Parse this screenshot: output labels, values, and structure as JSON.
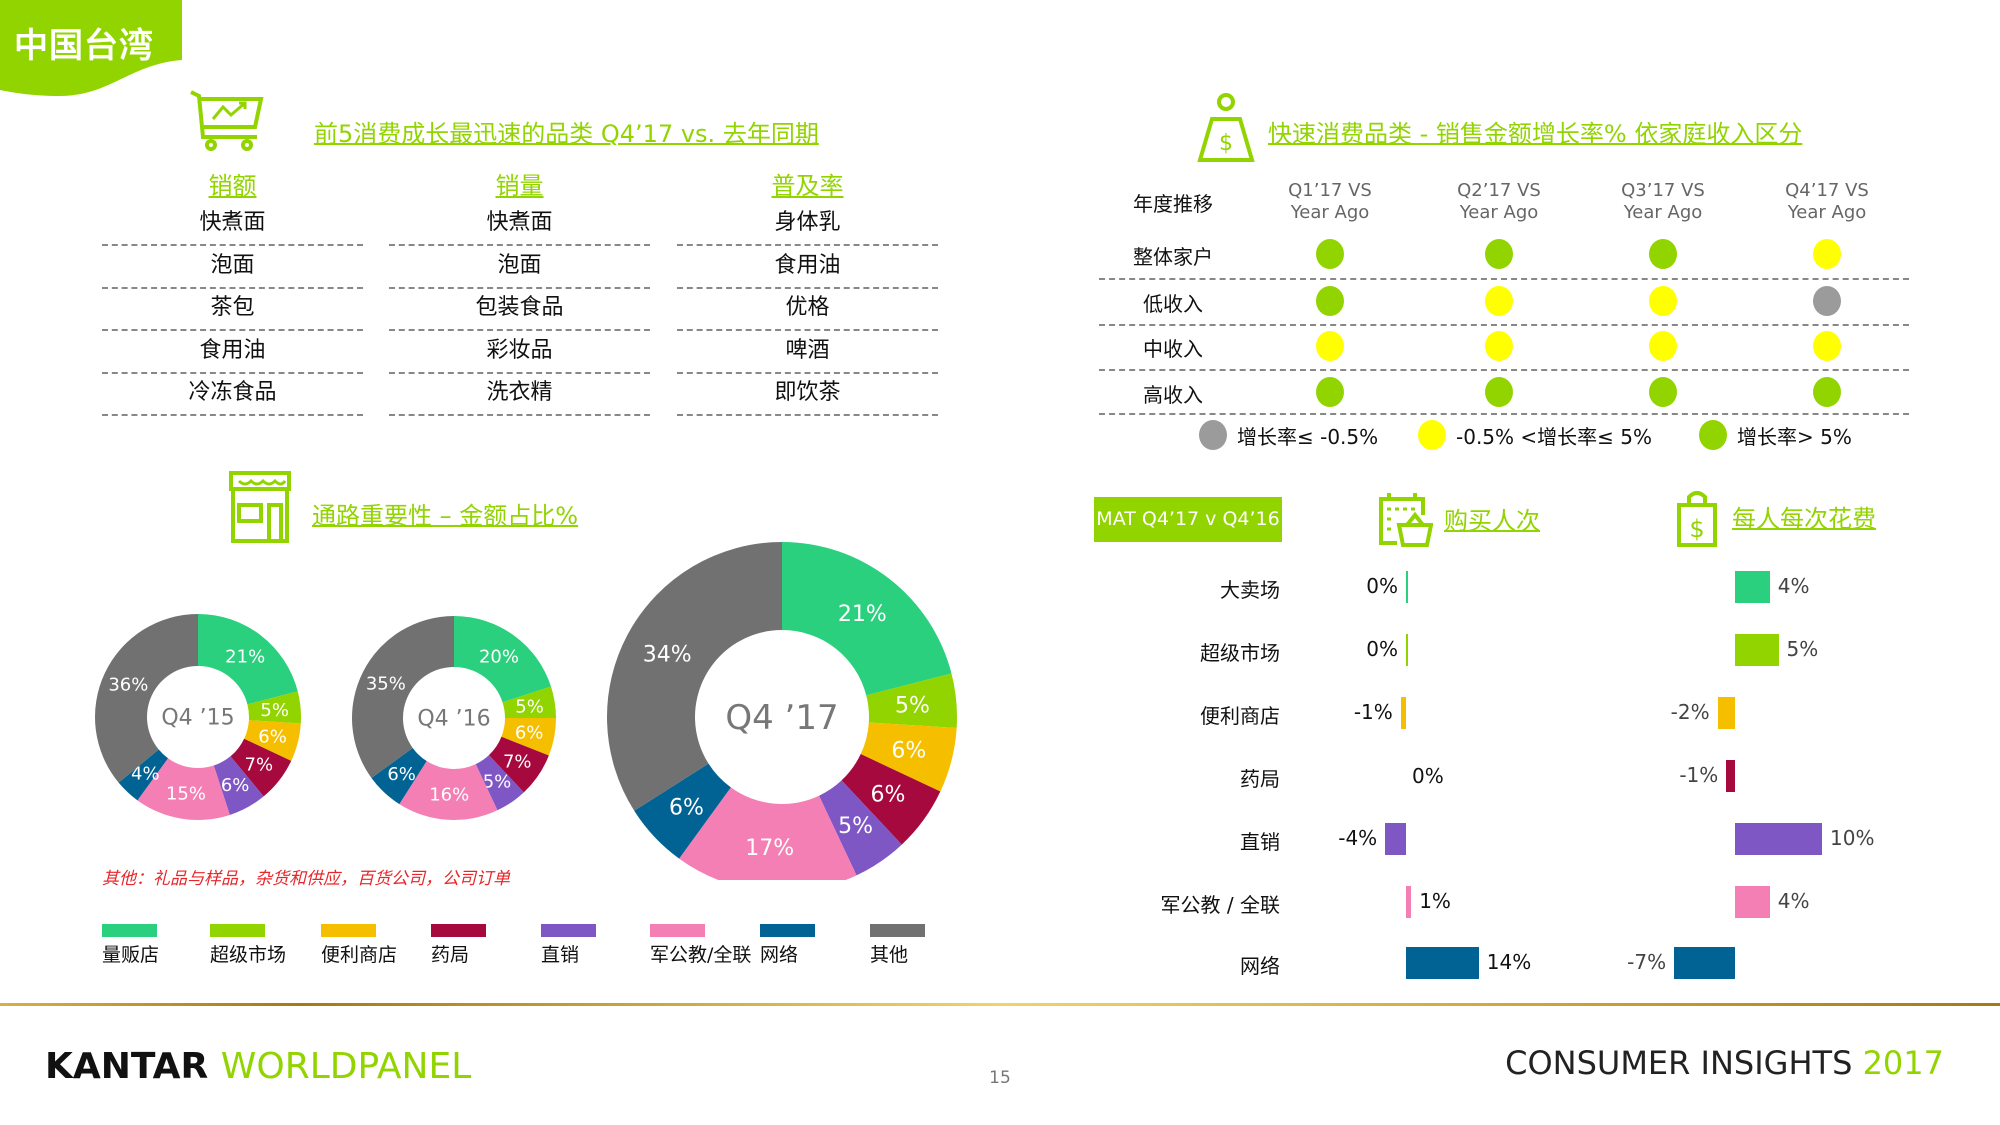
{
  "badge": {
    "label": "中国台湾",
    "color": "#92d400"
  },
  "top_categories": {
    "title": "前5消费成长最迅速的品类 Q4’17  vs.  去年同期",
    "columns": [
      {
        "header": "销额",
        "items": [
          "快煮面",
          "泡面",
          "茶包",
          "食用油",
          "冷冻食品"
        ]
      },
      {
        "header": "销量",
        "items": [
          "快煮面",
          "泡面",
          "包装食品",
          "彩妆品",
          "洗衣精"
        ]
      },
      {
        "header": "普及率",
        "items": [
          "身体乳",
          "食用油",
          "优格",
          "啤酒",
          "即饮茶"
        ]
      }
    ]
  },
  "income_growth": {
    "title": "快速消费品类 - 销售金额增长率% 依家庭收入区分",
    "corner_label": "年度推移",
    "periods": [
      {
        "line1": "Q1’17 VS",
        "line2": "Year Ago"
      },
      {
        "line1": "Q2’17 VS",
        "line2": "Year Ago"
      },
      {
        "line1": "Q3’17 VS",
        "line2": "Year Ago"
      },
      {
        "line1": "Q4’17 VS",
        "line2": "Year Ago"
      }
    ],
    "rows": [
      {
        "label": "整体家户",
        "status": [
          "high",
          "high",
          "high",
          "mid"
        ]
      },
      {
        "label": "低收入",
        "status": [
          "high",
          "mid",
          "mid",
          "low"
        ]
      },
      {
        "label": "中收入",
        "status": [
          "mid",
          "mid",
          "mid",
          "mid"
        ]
      },
      {
        "label": "高收入",
        "status": [
          "high",
          "high",
          "high",
          "high"
        ]
      }
    ],
    "status_colors": {
      "low": "#9b9b9b",
      "mid": "#ffff00",
      "high": "#92d400"
    },
    "legend": [
      {
        "status": "low",
        "label": "增长率≤ -0.5%"
      },
      {
        "status": "mid",
        "label": "-0.5% <增长率≤  5%"
      },
      {
        "status": "high",
        "label": "增长率> 5%"
      }
    ]
  },
  "channel_share": {
    "title": "通路重要性 – 金额占比%",
    "note": "其他：礼品与样品，杂货和供应，百货公司，公司订单",
    "channels": [
      {
        "name": "量贩店",
        "color": "#2ad07d"
      },
      {
        "name": "超级市场",
        "color": "#92d400"
      },
      {
        "name": "便利商店",
        "color": "#f5bf00"
      },
      {
        "name": "药局",
        "color": "#a5093d"
      },
      {
        "name": "直销",
        "color": "#7e57c5"
      },
      {
        "name": "军公教/全联",
        "color": "#f47fb4"
      },
      {
        "name": "网络",
        "color": "#006394"
      },
      {
        "name": "其他",
        "color": "#717171"
      }
    ]
  },
  "chart_data": [
    {
      "type": "pie",
      "title": "Q4 ’15",
      "categories": [
        "量贩店",
        "超级市场",
        "便利商店",
        "药局",
        "直销",
        "军公教/全联",
        "网络",
        "其他"
      ],
      "values": [
        21,
        5,
        6,
        7,
        6,
        15,
        4,
        36
      ],
      "labels": [
        "21%",
        "5%",
        "6%",
        "7%",
        "6%",
        "15%",
        "4%",
        "36%"
      ]
    },
    {
      "type": "pie",
      "title": "Q4 ’16",
      "categories": [
        "量贩店",
        "超级市场",
        "便利商店",
        "药局",
        "直销",
        "军公教/全联",
        "网络",
        "其他"
      ],
      "values": [
        20,
        5,
        6,
        7,
        5,
        16,
        6,
        35
      ],
      "labels": [
        "20%",
        "5%",
        "6%",
        "7%",
        "5%",
        "16%",
        "6%",
        "35%"
      ]
    },
    {
      "type": "pie",
      "title": "Q4 ’17",
      "categories": [
        "量贩店",
        "超级市场",
        "便利商店",
        "药局",
        "直销",
        "军公教/全联",
        "网络",
        "其他"
      ],
      "values": [
        21,
        5,
        6,
        6,
        5,
        17,
        6,
        34
      ],
      "labels": [
        "21%",
        "5%",
        "6%",
        "6%",
        "5%",
        "17%",
        "6%",
        "34%"
      ]
    },
    {
      "type": "bar",
      "title": "购买人次",
      "period_label": "MAT Q4’17 v Q4’16",
      "categories": [
        "大卖场",
        "超级市场",
        "便利商店",
        "药局",
        "直销",
        "军公教 / 全联",
        "网络"
      ],
      "values": [
        0,
        0,
        -1,
        0,
        -4,
        1,
        14
      ],
      "labels": [
        "0%",
        "0%",
        "-1%",
        "0%",
        "-4%",
        "1%",
        "14%"
      ]
    },
    {
      "type": "bar",
      "title": "每人每次花费",
      "categories": [
        "大卖场",
        "超级市场",
        "便利商店",
        "药局",
        "直销",
        "军公教 / 全联",
        "网络"
      ],
      "values": [
        4,
        5,
        -2,
        -1,
        10,
        4,
        -7
      ],
      "labels": [
        "4%",
        "5%",
        "-2%",
        "-1%",
        "10%",
        "4%",
        "-7%"
      ]
    }
  ],
  "bar_colors": [
    "#2ad07d",
    "#92d400",
    "#f5bf00",
    "#a5093d",
    "#7e57c5",
    "#f47fb4",
    "#006394"
  ],
  "footer": {
    "brand_a": "KANTAR",
    "brand_b": "WORLDPANEL",
    "page": "15",
    "tagline": "CONSUMER INSIGHTS",
    "year": "2017"
  }
}
